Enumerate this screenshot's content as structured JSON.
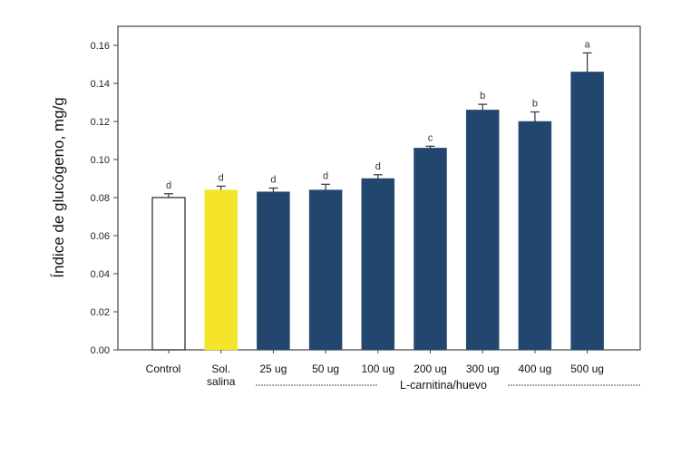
{
  "chart_data": {
    "type": "bar",
    "title": "",
    "xlabel": "",
    "ylabel": "Índice de glucógeno, mg/g",
    "ylim": [
      0,
      0.17
    ],
    "yticks": [
      "0.00",
      "0.02",
      "0.04",
      "0.06",
      "0.08",
      "0.10",
      "0.12",
      "0.14",
      "0.16"
    ],
    "grid": false,
    "categories": [
      [
        "Control"
      ],
      [
        "Sol.",
        "salina"
      ],
      [
        "25 ug"
      ],
      [
        "50 ug"
      ],
      [
        "100 ug"
      ],
      [
        "200 ug"
      ],
      [
        "300 ug"
      ],
      [
        "400 ug"
      ],
      [
        "500 ug"
      ]
    ],
    "values": [
      0.08,
      0.084,
      0.083,
      0.084,
      0.09,
      0.106,
      0.126,
      0.12,
      0.146
    ],
    "errors": [
      0.002,
      0.002,
      0.002,
      0.003,
      0.002,
      0.001,
      0.003,
      0.005,
      0.01
    ],
    "significance": [
      "d",
      "d",
      "d",
      "d",
      "d",
      "c",
      "b",
      "b",
      "a"
    ],
    "bar_colors": [
      "#ffffff",
      "#f5e52a",
      "#23466f",
      "#23466f",
      "#23466f",
      "#23466f",
      "#23466f",
      "#23466f",
      "#23466f"
    ],
    "group_label": "L-carnitina/huevo"
  }
}
